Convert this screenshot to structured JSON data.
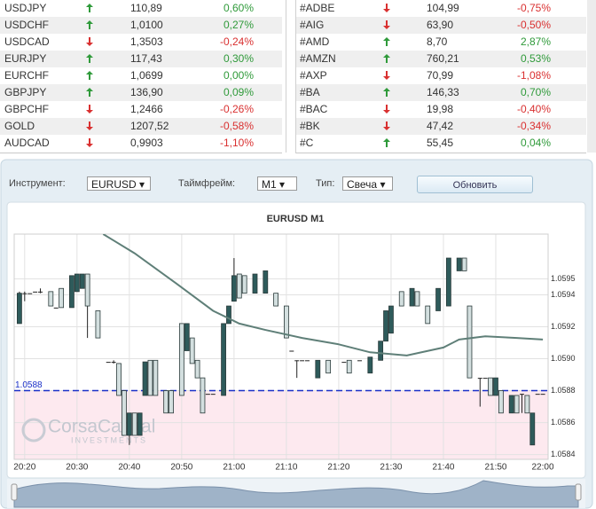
{
  "quotes_left": [
    {
      "symbol": "USDJPY",
      "trend": "up",
      "price": "110,89",
      "change": "0,60%"
    },
    {
      "symbol": "USDCHF",
      "trend": "up",
      "price": "1,0100",
      "change": "0,27%"
    },
    {
      "symbol": "USDCAD",
      "trend": "down",
      "price": "1,3503",
      "change": "-0,24%"
    },
    {
      "symbol": "EURJPY",
      "trend": "up",
      "price": "117,43",
      "change": "0,30%"
    },
    {
      "symbol": "EURCHF",
      "trend": "up",
      "price": "1,0699",
      "change": "0,00%"
    },
    {
      "symbol": "GBPJPY",
      "trend": "up",
      "price": "136,90",
      "change": "0,09%"
    },
    {
      "symbol": "GBPCHF",
      "trend": "down",
      "price": "1,2466",
      "change": "-0,26%"
    },
    {
      "symbol": "GOLD",
      "trend": "down",
      "price": "1207,52",
      "change": "-0,58%"
    },
    {
      "symbol": "AUDCAD",
      "trend": "down",
      "price": "0,9903",
      "change": "-1,10%"
    }
  ],
  "quotes_right": [
    {
      "symbol": "#ADBE",
      "trend": "down",
      "price": "104,99",
      "change": "-0,75%"
    },
    {
      "symbol": "#AIG",
      "trend": "down",
      "price": "63,90",
      "change": "-0,50%"
    },
    {
      "symbol": "#AMD",
      "trend": "up",
      "price": "8,70",
      "change": "2,87%"
    },
    {
      "symbol": "#AMZN",
      "trend": "up",
      "price": "760,21",
      "change": "0,53%"
    },
    {
      "symbol": "#AXP",
      "trend": "down",
      "price": "70,99",
      "change": "-1,08%"
    },
    {
      "symbol": "#BA",
      "trend": "up",
      "price": "146,33",
      "change": "0,70%"
    },
    {
      "symbol": "#BAC",
      "trend": "down",
      "price": "19,98",
      "change": "-0,40%"
    },
    {
      "symbol": "#BK",
      "trend": "down",
      "price": "47,42",
      "change": "-0,34%"
    },
    {
      "symbol": "#C",
      "trend": "up",
      "price": "55,45",
      "change": "0,04%"
    }
  ],
  "toolbar": {
    "instrument_label": "Инструмент:",
    "instrument": "EURUSD",
    "timeframe_label": "Таймфрейм:",
    "timeframe": "M1",
    "type_label": "Тип:",
    "type": "Свеча",
    "button": "Обновить"
  },
  "chart_data": {
    "type": "candlestick",
    "title": "EURUSD M1",
    "up_color": "#2e5b5b",
    "down_color": "#d3dfdf",
    "xlim": [
      "20:18",
      "22:00"
    ],
    "xticks": [
      "20:20",
      "20:30",
      "20:40",
      "20:50",
      "21:00",
      "21:10",
      "21:20",
      "21:30",
      "21:40",
      "21:50",
      "22:00"
    ],
    "ylim": [
      1.05837,
      1.05978
    ],
    "yticks": [
      1.0595,
      1.0594,
      1.0592,
      {
        "value": 1.059,
        "label": "1.0590"
      },
      1.0588,
      1.0586,
      1.0584
    ],
    "grid": true,
    "level": 1.0588,
    "level_color": "#1a2fc8",
    "watermark": [
      "CorsaCapital",
      "INVESTMENTS"
    ],
    "ma": {
      "color": "#5f7f78",
      "x": [
        "20:35",
        "20:41",
        "20:49",
        "20:56",
        "21:01",
        "21:06",
        "21:13",
        "21:20",
        "21:26",
        "21:33",
        "21:40",
        "21:43",
        "21:48",
        "21:54",
        "21:59"
      ],
      "values": [
        1.05978,
        1.05966,
        1.05947,
        1.0593,
        1.05922,
        1.05918,
        1.05913,
        1.05909,
        1.05904,
        1.05902,
        1.05907,
        1.05912,
        1.05914,
        1.05913,
        1.05912
      ]
    },
    "candles": [
      {
        "x": "20:19",
        "open": 1.05922,
        "high": 1.05942,
        "low": 1.05922,
        "close": 1.05941
      },
      {
        "x": "20:20",
        "open": 1.05941,
        "high": 1.05942,
        "low": 1.05936,
        "close": 1.05941
      },
      {
        "x": "20:21",
        "open": 1.05941,
        "high": 1.05941,
        "low": 1.05941,
        "close": 1.05941
      },
      {
        "x": "20:22",
        "open": 1.05942,
        "high": 1.05942,
        "low": 1.05942,
        "close": 1.05942
      },
      {
        "x": "20:23",
        "open": 1.05942,
        "high": 1.05944,
        "low": 1.05941,
        "close": 1.05942
      },
      {
        "x": "20:25",
        "open": 1.05942,
        "high": 1.05942,
        "low": 1.05933,
        "close": 1.05933
      },
      {
        "x": "20:26",
        "open": 1.05932,
        "high": 1.05932,
        "low": 1.05932,
        "close": 1.05932
      },
      {
        "x": "20:27",
        "open": 1.05944,
        "high": 1.05944,
        "low": 1.05932,
        "close": 1.05932
      },
      {
        "x": "20:29",
        "open": 1.05932,
        "high": 1.05952,
        "low": 1.05932,
        "close": 1.05952
      },
      {
        "x": "20:30",
        "open": 1.05942,
        "high": 1.05953,
        "low": 1.05942,
        "close": 1.05953
      },
      {
        "x": "20:31",
        "open": 1.05944,
        "high": 1.05953,
        "low": 1.05944,
        "close": 1.05953
      },
      {
        "x": "20:32",
        "open": 1.05953,
        "high": 1.05953,
        "low": 1.05913,
        "close": 1.05933
      },
      {
        "x": "20:34",
        "open": 1.0593,
        "high": 1.0593,
        "low": 1.05913,
        "close": 1.05913
      },
      {
        "x": "20:36",
        "open": 1.05898,
        "high": 1.05898,
        "low": 1.05898,
        "close": 1.05898
      },
      {
        "x": "20:37",
        "open": 1.05898,
        "high": 1.05899,
        "low": 1.05897,
        "close": 1.05898
      },
      {
        "x": "20:38",
        "open": 1.05897,
        "high": 1.05897,
        "low": 1.05877,
        "close": 1.05877
      },
      {
        "x": "20:39",
        "open": 1.0588,
        "high": 1.0588,
        "low": 1.05852,
        "close": 1.05852
      },
      {
        "x": "20:40",
        "open": 1.05852,
        "high": 1.05866,
        "low": 1.05846,
        "close": 1.05866
      },
      {
        "x": "20:41",
        "open": 1.05866,
        "high": 1.05866,
        "low": 1.05852,
        "close": 1.05852
      },
      {
        "x": "20:42",
        "open": 1.05852,
        "high": 1.05866,
        "low": 1.05852,
        "close": 1.05866
      },
      {
        "x": "20:43",
        "open": 1.05877,
        "high": 1.05898,
        "low": 1.05877,
        "close": 1.05898
      },
      {
        "x": "20:44",
        "open": 1.05899,
        "high": 1.05899,
        "low": 1.05877,
        "close": 1.05877
      },
      {
        "x": "20:45",
        "open": 1.05899,
        "high": 1.05899,
        "low": 1.05877,
        "close": 1.05877
      },
      {
        "x": "20:47",
        "open": 1.0588,
        "high": 1.0588,
        "low": 1.05866,
        "close": 1.05866
      },
      {
        "x": "20:48",
        "open": 1.0588,
        "high": 1.0588,
        "low": 1.05866,
        "close": 1.05866
      },
      {
        "x": "20:50",
        "open": 1.05922,
        "high": 1.05922,
        "low": 1.05877,
        "close": 1.05877
      },
      {
        "x": "20:51",
        "open": 1.05905,
        "high": 1.05922,
        "low": 1.05905,
        "close": 1.05922
      },
      {
        "x": "20:52",
        "open": 1.05913,
        "high": 1.05913,
        "low": 1.05897,
        "close": 1.05897
      },
      {
        "x": "20:53",
        "open": 1.05899,
        "high": 1.05899,
        "low": 1.05888,
        "close": 1.05888
      },
      {
        "x": "20:54",
        "open": 1.05888,
        "high": 1.05888,
        "low": 1.05866,
        "close": 1.05866
      },
      {
        "x": "20:55",
        "open": 1.05878,
        "high": 1.05878,
        "low": 1.05878,
        "close": 1.05878
      },
      {
        "x": "20:56",
        "open": 1.05878,
        "high": 1.05878,
        "low": 1.05878,
        "close": 1.05878
      },
      {
        "x": "20:58",
        "open": 1.05877,
        "high": 1.05922,
        "low": 1.05877,
        "close": 1.05922
      },
      {
        "x": "20:59",
        "open": 1.05922,
        "high": 1.05933,
        "low": 1.05922,
        "close": 1.05933
      },
      {
        "x": "21:00",
        "open": 1.05936,
        "high": 1.05963,
        "low": 1.05936,
        "close": 1.05952
      },
      {
        "x": "21:01",
        "open": 1.05953,
        "high": 1.05953,
        "low": 1.05938,
        "close": 1.05938
      },
      {
        "x": "21:02",
        "open": 1.05952,
        "high": 1.05952,
        "low": 1.05941,
        "close": 1.05941
      },
      {
        "x": "21:04",
        "open": 1.05941,
        "high": 1.05953,
        "low": 1.05941,
        "close": 1.05953
      },
      {
        "x": "21:06",
        "open": 1.05941,
        "high": 1.05955,
        "low": 1.05941,
        "close": 1.05955
      },
      {
        "x": "21:08",
        "open": 1.05941,
        "high": 1.05941,
        "low": 1.05933,
        "close": 1.05933
      },
      {
        "x": "21:10",
        "open": 1.05933,
        "high": 1.05933,
        "low": 1.05913,
        "close": 1.05913
      },
      {
        "x": "21:11",
        "open": 1.05905,
        "high": 1.05905,
        "low": 1.05905,
        "close": 1.05905
      },
      {
        "x": "21:12",
        "open": 1.05899,
        "high": 1.05899,
        "low": 1.05888,
        "close": 1.05899
      },
      {
        "x": "21:13",
        "open": 1.05899,
        "high": 1.05899,
        "low": 1.05899,
        "close": 1.05899
      },
      {
        "x": "21:14",
        "open": 1.05899,
        "high": 1.05899,
        "low": 1.05899,
        "close": 1.05899
      },
      {
        "x": "21:16",
        "open": 1.05888,
        "high": 1.05899,
        "low": 1.05888,
        "close": 1.05899
      },
      {
        "x": "21:18",
        "open": 1.05899,
        "high": 1.05899,
        "low": 1.05891,
        "close": 1.05891
      },
      {
        "x": "21:21",
        "open": 1.05898,
        "high": 1.05898,
        "low": 1.05898,
        "close": 1.05898
      },
      {
        "x": "21:22",
        "open": 1.05899,
        "high": 1.05899,
        "low": 1.05891,
        "close": 1.05891
      },
      {
        "x": "21:24",
        "open": 1.05899,
        "high": 1.05899,
        "low": 1.05899,
        "close": 1.05899
      },
      {
        "x": "21:26",
        "open": 1.05891,
        "high": 1.05901,
        "low": 1.05891,
        "close": 1.05901
      },
      {
        "x": "21:28",
        "open": 1.05899,
        "high": 1.05911,
        "low": 1.05899,
        "close": 1.05911
      },
      {
        "x": "21:29",
        "open": 1.05911,
        "high": 1.0593,
        "low": 1.05911,
        "close": 1.0593
      },
      {
        "x": "21:30",
        "open": 1.05916,
        "high": 1.05933,
        "low": 1.05916,
        "close": 1.05933
      },
      {
        "x": "21:32",
        "open": 1.05942,
        "high": 1.05942,
        "low": 1.05933,
        "close": 1.05933
      },
      {
        "x": "21:34",
        "open": 1.05933,
        "high": 1.05944,
        "low": 1.05933,
        "close": 1.05944
      },
      {
        "x": "21:35",
        "open": 1.05942,
        "high": 1.05942,
        "low": 1.05933,
        "close": 1.05933
      },
      {
        "x": "21:37",
        "open": 1.05933,
        "high": 1.05933,
        "low": 1.05922,
        "close": 1.05922
      },
      {
        "x": "21:39",
        "open": 1.0593,
        "high": 1.05944,
        "low": 1.0593,
        "close": 1.05944
      },
      {
        "x": "21:41",
        "open": 1.05933,
        "high": 1.05963,
        "low": 1.05933,
        "close": 1.05963
      },
      {
        "x": "21:43",
        "open": 1.05955,
        "high": 1.05963,
        "low": 1.05955,
        "close": 1.05963
      },
      {
        "x": "21:44",
        "open": 1.05963,
        "high": 1.05963,
        "low": 1.05955,
        "close": 1.05955
      },
      {
        "x": "21:45",
        "open": 1.05933,
        "high": 1.05933,
        "low": 1.05888,
        "close": 1.05888
      },
      {
        "x": "21:47",
        "open": 1.05888,
        "high": 1.05888,
        "low": 1.0587,
        "close": 1.05888
      },
      {
        "x": "21:48",
        "open": 1.05888,
        "high": 1.05888,
        "low": 1.05888,
        "close": 1.05888
      },
      {
        "x": "21:49",
        "open": 1.05888,
        "high": 1.05888,
        "low": 1.05877,
        "close": 1.05877
      },
      {
        "x": "21:50",
        "open": 1.05877,
        "high": 1.05888,
        "low": 1.05877,
        "close": 1.05888
      },
      {
        "x": "21:51",
        "open": 1.0588,
        "high": 1.0588,
        "low": 1.05866,
        "close": 1.05866
      },
      {
        "x": "21:53",
        "open": 1.05866,
        "high": 1.05877,
        "low": 1.05866,
        "close": 1.05877
      },
      {
        "x": "21:54",
        "open": 1.05877,
        "high": 1.05877,
        "low": 1.05866,
        "close": 1.05866
      },
      {
        "x": "21:55",
        "open": 1.05878,
        "high": 1.05878,
        "low": 1.05866,
        "close": 1.05878
      },
      {
        "x": "21:56",
        "open": 1.05877,
        "high": 1.05877,
        "low": 1.05866,
        "close": 1.05866
      },
      {
        "x": "21:57",
        "open": 1.05846,
        "high": 1.05866,
        "low": 1.05846,
        "close": 1.05866
      },
      {
        "x": "21:58",
        "open": 1.05878,
        "high": 1.05878,
        "low": 1.05878,
        "close": 1.05878
      },
      {
        "x": "21:59",
        "open": 1.05878,
        "high": 1.05878,
        "low": 1.05878,
        "close": 1.05878
      }
    ]
  }
}
